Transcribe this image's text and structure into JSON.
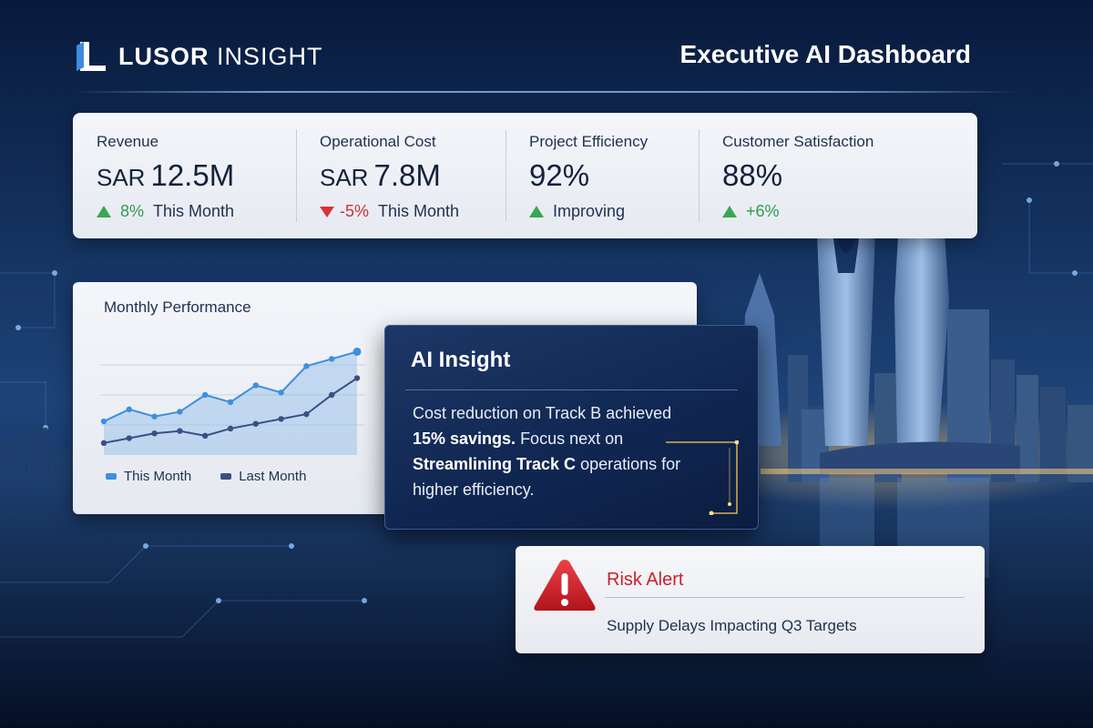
{
  "brand": {
    "name_bold": "LUSOR",
    "name_light": "INSIGHT"
  },
  "header": {
    "title": "Executive AI Dashboard"
  },
  "kpis": [
    {
      "label": "Revenue",
      "unit": "SAR",
      "value": "12.5M",
      "trend": "up",
      "delta": "8%",
      "note": "This Month"
    },
    {
      "label": "Operational Cost",
      "unit": "SAR",
      "value": "7.8M",
      "trend": "down",
      "delta": "-5%",
      "note": "This Month"
    },
    {
      "label": "Project Efficiency",
      "unit": "",
      "value": "92%",
      "trend": "up",
      "delta": "",
      "note": "Improving"
    },
    {
      "label": "Customer Satisfaction",
      "unit": "",
      "value": "88%",
      "trend": "up",
      "delta": "+6%",
      "note": ""
    }
  ],
  "performance": {
    "title": "Monthly Performance",
    "legend": [
      {
        "label": "This Month",
        "color": "#3d8fe0"
      },
      {
        "label": "Last Month",
        "color": "#3b4f86"
      }
    ]
  },
  "chart_data": {
    "type": "area",
    "title": "Monthly Performance",
    "x": [
      1,
      2,
      3,
      4,
      5,
      6,
      7,
      8,
      9,
      10,
      11
    ],
    "series": [
      {
        "name": "This Month",
        "values": [
          28,
          38,
          32,
          36,
          50,
          44,
          58,
          52,
          74,
          80,
          86
        ]
      },
      {
        "name": "Last Month",
        "values": [
          10,
          14,
          18,
          20,
          16,
          22,
          26,
          30,
          34,
          50,
          64
        ]
      }
    ],
    "ylim": [
      0,
      100
    ],
    "grid": true,
    "legend_position": "bottom"
  },
  "insight": {
    "title": "AI Insight",
    "line1": "Cost reduction on Track B achieved",
    "bold1": "15% savings.",
    "line2": " Focus next on",
    "bold2": "Streamlining Track C",
    "line3": " operations for",
    "line4": "higher efficiency."
  },
  "risk": {
    "title": "Risk Alert",
    "message": "Supply Delays Impacting Q3 Targets",
    "icon": "warning-triangle-icon",
    "color": "#c8232a"
  },
  "colors": {
    "positive": "#3aa655",
    "negative": "#d6333a",
    "this_month": "#3d8fe0",
    "last_month": "#3b4f86"
  }
}
